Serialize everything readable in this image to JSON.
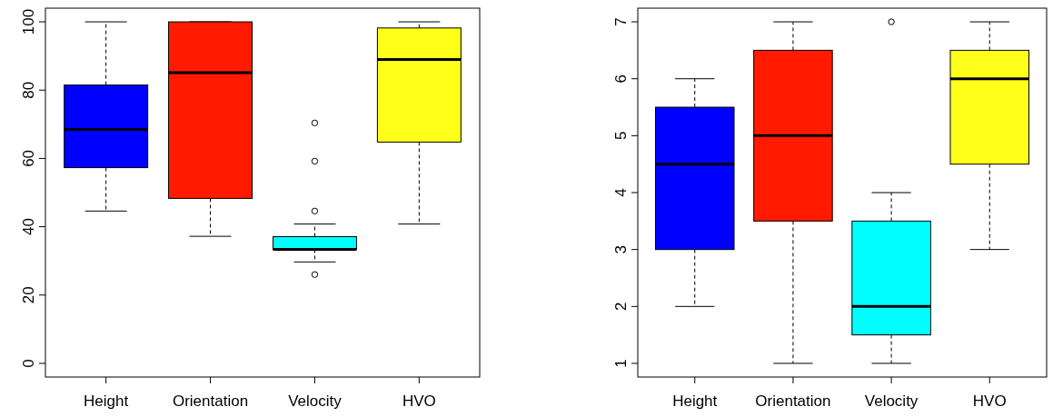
{
  "chart_data": [
    {
      "type": "box",
      "categories": [
        "Height",
        "Orientation",
        "Velocity",
        "HVO"
      ],
      "colors": [
        "#0000ff",
        "#ff1a00",
        "#00ffff",
        "#ffff1a"
      ],
      "ylim": [
        -4,
        104
      ],
      "yticks": [
        0,
        20,
        40,
        60,
        80,
        100
      ],
      "boxes": [
        {
          "low": 44.6,
          "q1": 57.3,
          "median": 68.5,
          "q3": 81.5,
          "high": 100
        },
        {
          "low": 37.2,
          "q1": 48.3,
          "median": 85.1,
          "q3": 100,
          "high": 100
        },
        {
          "low": 29.7,
          "q1": 33.4,
          "median": 33.4,
          "q3": 37.1,
          "high": 40.8,
          "outliers": [
            70.4,
            59.2,
            44.6,
            26.0
          ]
        },
        {
          "low": 40.8,
          "q1": 64.8,
          "median": 89.0,
          "q3": 98.2,
          "high": 100
        }
      ]
    },
    {
      "type": "box",
      "categories": [
        "Height",
        "Orientation",
        "Velocity",
        "HVO"
      ],
      "colors": [
        "#0000ff",
        "#ff1a00",
        "#00ffff",
        "#ffff1a"
      ],
      "ylim": [
        0.76,
        7.24
      ],
      "yticks": [
        1,
        2,
        3,
        4,
        5,
        6,
        7
      ],
      "boxes": [
        {
          "low": 2,
          "q1": 3,
          "median": 4.5,
          "q3": 5.5,
          "high": 6
        },
        {
          "low": 1,
          "q1": 3.5,
          "median": 5,
          "q3": 6.5,
          "high": 7
        },
        {
          "low": 1,
          "q1": 1.5,
          "median": 2,
          "q3": 3.5,
          "high": 4,
          "outliers": [
            7
          ]
        },
        {
          "low": 3,
          "q1": 4.5,
          "median": 6,
          "q3": 6.5,
          "high": 7
        }
      ]
    }
  ]
}
